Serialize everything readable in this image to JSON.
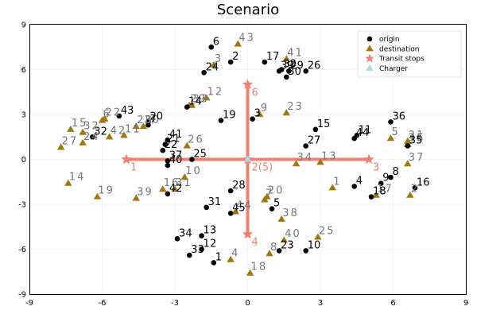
{
  "chart_data": {
    "type": "scatter",
    "title": "Scenario",
    "xlim": [
      -9,
      9
    ],
    "ylim": [
      -9,
      9
    ],
    "x_ticks": [
      -9,
      -6,
      -3,
      0,
      3,
      6,
      9
    ],
    "y_ticks": [
      -9,
      -6,
      -3,
      0,
      3,
      6,
      9
    ],
    "x_tick_labels": [
      "-9",
      "-6",
      "-3",
      "0",
      "3",
      "6",
      "9"
    ],
    "y_tick_labels": [
      "-9",
      "-6",
      "-3",
      "0",
      "3",
      "6",
      "9"
    ],
    "grid": true,
    "legend_position": "top-right",
    "colors": {
      "origin": "#000000",
      "destination": "#a07810",
      "transit": "#f08070",
      "charger": "#add8e6",
      "origin_label": "#000000",
      "destination_label": "#777777",
      "transit_label": "#f08070"
    },
    "legend": [
      {
        "name": "origin",
        "marker": "circle",
        "color": "#000000"
      },
      {
        "name": "destination",
        "marker": "triangle",
        "color": "#a07810"
      },
      {
        "name": "Transit stops",
        "marker": "star",
        "color": "#f08070"
      },
      {
        "name": "Charger",
        "marker": "triangle",
        "color": "#add8e6"
      }
    ],
    "transit_lines": [
      {
        "x": [
          -5,
          5
        ],
        "y": [
          0,
          0
        ]
      },
      {
        "x": [
          0,
          0
        ],
        "y": [
          -5,
          5
        ]
      }
    ],
    "transit_stops": [
      {
        "label": "1",
        "x": -5,
        "y": 0
      },
      {
        "label": "2(5)",
        "x": 0,
        "y": 0
      },
      {
        "label": "3",
        "x": 5,
        "y": 0
      },
      {
        "label": "4",
        "x": 0,
        "y": -5
      },
      {
        "label": "6",
        "x": 0,
        "y": 5
      }
    ],
    "chargers": [
      {
        "x": 0,
        "y": 0
      }
    ],
    "origins": [
      {
        "label": "1",
        "x": -1.4,
        "y": -6.9
      },
      {
        "label": "2",
        "x": -0.7,
        "y": 6.5
      },
      {
        "label": "3",
        "x": 0.2,
        "y": 2.7
      },
      {
        "label": "4",
        "x": 4.4,
        "y": -1.8
      },
      {
        "label": "5",
        "x": 1.0,
        "y": -3.3
      },
      {
        "label": "6",
        "x": -1.5,
        "y": 7.5
      },
      {
        "label": "7",
        "x": -4.1,
        "y": 2.3
      },
      {
        "label": "8",
        "x": 5.9,
        "y": -1.2
      },
      {
        "label": "9",
        "x": 5.5,
        "y": -1.6
      },
      {
        "label": "10",
        "x": 2.4,
        "y": -6.1
      },
      {
        "label": "11",
        "x": 4.5,
        "y": 1.6
      },
      {
        "label": "12",
        "x": -1.9,
        "y": -6.0
      },
      {
        "label": "13",
        "x": -1.9,
        "y": -5.1
      },
      {
        "label": "14",
        "x": -2.5,
        "y": 3.5
      },
      {
        "label": "15",
        "x": 2.8,
        "y": 2.0
      },
      {
        "label": "16",
        "x": 6.9,
        "y": -1.9
      },
      {
        "label": "17",
        "x": 0.7,
        "y": 6.5
      },
      {
        "label": "18",
        "x": 5.1,
        "y": -2.5
      },
      {
        "label": "19",
        "x": -1.1,
        "y": 2.6
      },
      {
        "label": "20",
        "x": -4.1,
        "y": 2.5
      },
      {
        "label": "21",
        "x": -3.4,
        "y": 1.0
      },
      {
        "label": "22",
        "x": -3.5,
        "y": 0.6
      },
      {
        "label": "23",
        "x": 1.3,
        "y": -6.1
      },
      {
        "label": "24",
        "x": -1.8,
        "y": 5.8
      },
      {
        "label": "25",
        "x": -2.3,
        "y": 0.0
      },
      {
        "label": "26",
        "x": 2.4,
        "y": 5.9
      },
      {
        "label": "27",
        "x": 2.4,
        "y": 0.9
      },
      {
        "label": "28",
        "x": -0.7,
        "y": -2.1
      },
      {
        "label": "29",
        "x": 1.7,
        "y": 5.9
      },
      {
        "label": "30",
        "x": 1.6,
        "y": 5.5
      },
      {
        "label": "31",
        "x": -1.7,
        "y": -3.2
      },
      {
        "label": "32",
        "x": -6.4,
        "y": 1.5
      },
      {
        "label": "33",
        "x": -2.4,
        "y": -6.4
      },
      {
        "label": "34",
        "x": -2.9,
        "y": -5.3
      },
      {
        "label": "35",
        "x": 6.6,
        "y": 0.9
      },
      {
        "label": "36",
        "x": 5.9,
        "y": 2.5
      },
      {
        "label": "37",
        "x": -3.3,
        "y": -0.1
      },
      {
        "label": "38",
        "x": 1.4,
        "y": 6.0
      },
      {
        "label": "39",
        "x": 1.3,
        "y": 5.9
      },
      {
        "label": "40",
        "x": -3.3,
        "y": -0.4
      },
      {
        "label": "41",
        "x": -3.3,
        "y": 1.3
      },
      {
        "label": "42",
        "x": -3.3,
        "y": -2.3
      },
      {
        "label": "43",
        "x": -5.3,
        "y": 2.9
      },
      {
        "label": "44",
        "x": 4.4,
        "y": 1.4
      },
      {
        "label": "45",
        "x": -0.7,
        "y": -3.6
      }
    ],
    "destinations": [
      {
        "label": "1",
        "x": 3.5,
        "y": -1.9
      },
      {
        "label": "2",
        "x": 6.7,
        "y": -2.4
      },
      {
        "label": "3",
        "x": -1.4,
        "y": 6.3
      },
      {
        "label": "4",
        "x": -0.7,
        "y": -6.7
      },
      {
        "label": "5",
        "x": 5.9,
        "y": 1.4
      },
      {
        "label": "6",
        "x": -6.0,
        "y": 2.6
      },
      {
        "label": "7",
        "x": 0.7,
        "y": -2.7
      },
      {
        "label": "8",
        "x": 0.9,
        "y": -6.3
      },
      {
        "label": "9",
        "x": 0.5,
        "y": 3.0
      },
      {
        "label": "10",
        "x": -2.6,
        "y": -1.2
      },
      {
        "label": "11",
        "x": -5.1,
        "y": 1.6
      },
      {
        "label": "12",
        "x": -1.7,
        "y": 4.1
      },
      {
        "label": "13",
        "x": 3.0,
        "y": -0.2
      },
      {
        "label": "14",
        "x": -7.4,
        "y": -1.6
      },
      {
        "label": "15",
        "x": -7.3,
        "y": 2.0
      },
      {
        "label": "16",
        "x": -3.5,
        "y": -2.0
      },
      {
        "label": "17",
        "x": 5.3,
        "y": -2.4
      },
      {
        "label": "18",
        "x": 0.1,
        "y": -7.6
      },
      {
        "label": "19",
        "x": -6.2,
        "y": -2.5
      },
      {
        "label": "20",
        "x": 0.8,
        "y": -2.5
      },
      {
        "label": "21",
        "x": 6.6,
        "y": 1.2
      },
      {
        "label": "22",
        "x": -5.9,
        "y": 2.7
      },
      {
        "label": "23",
        "x": 1.6,
        "y": 3.1
      },
      {
        "label": "24",
        "x": -6.8,
        "y": 1.1
      },
      {
        "label": "25",
        "x": 2.9,
        "y": -5.2
      },
      {
        "label": "26",
        "x": -2.5,
        "y": 0.9
      },
      {
        "label": "27",
        "x": -7.7,
        "y": 0.8
      },
      {
        "label": "28",
        "x": -4.6,
        "y": 2.2
      },
      {
        "label": "29",
        "x": -2.4,
        "y": 3.6
      },
      {
        "label": "30",
        "x": -4.3,
        "y": 2.2
      },
      {
        "label": "31",
        "x": -3.0,
        "y": -2.0
      },
      {
        "label": "32",
        "x": -6.8,
        "y": 1.8
      },
      {
        "label": "33",
        "x": -2.3,
        "y": 3.6
      },
      {
        "label": "34",
        "x": 2.0,
        "y": -0.3
      },
      {
        "label": "35",
        "x": 6.6,
        "y": 1.0
      },
      {
        "label": "36",
        "x": 6.6,
        "y": 1.0
      },
      {
        "label": "37",
        "x": 6.6,
        "y": -0.3
      },
      {
        "label": "38",
        "x": 1.4,
        "y": -4.0
      },
      {
        "label": "39",
        "x": -4.6,
        "y": -2.6
      },
      {
        "label": "40",
        "x": 1.5,
        "y": -5.4
      },
      {
        "label": "41",
        "x": 1.6,
        "y": 6.7
      },
      {
        "label": "42",
        "x": -5.7,
        "y": 1.5
      },
      {
        "label": "43",
        "x": -0.4,
        "y": 7.7
      },
      {
        "label": "44",
        "x": -0.5,
        "y": -3.5
      }
    ]
  }
}
